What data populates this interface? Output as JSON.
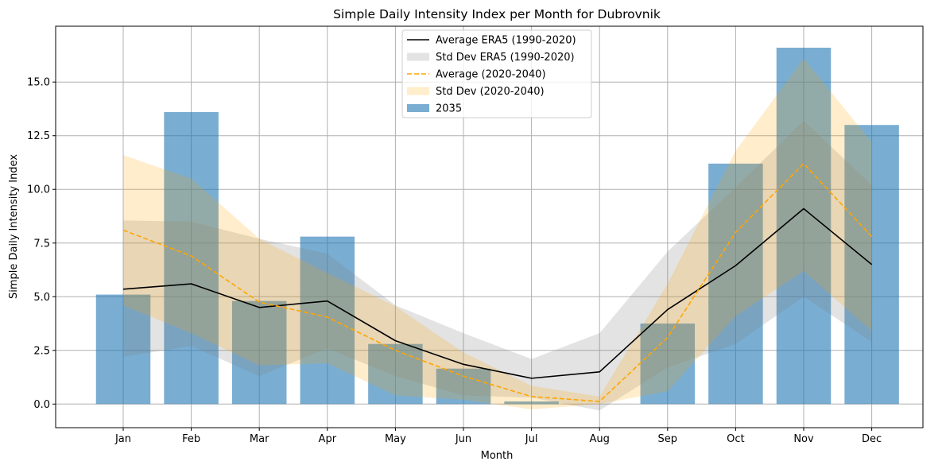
{
  "chart_data": {
    "type": "bar",
    "title": "Simple Daily Intensity Index per Month for Dubrovnik",
    "xlabel": "Month",
    "ylabel": "Simple Daily Intensity Index",
    "categories": [
      "Jan",
      "Feb",
      "Mar",
      "Apr",
      "May",
      "Jun",
      "Jul",
      "Aug",
      "Sep",
      "Oct",
      "Nov",
      "Dec"
    ],
    "ylim": [
      -1.1,
      17.6
    ],
    "yticks": [
      0.0,
      2.5,
      5.0,
      7.5,
      10.0,
      12.5,
      15.0
    ],
    "ytick_labels": [
      "0.0",
      "2.5",
      "5.0",
      "7.5",
      "10.0",
      "12.5",
      "15.0"
    ],
    "grid": true,
    "legend_position": "top-center",
    "series": [
      {
        "name": "Average ERA5 (1990-2020)",
        "kind": "line",
        "color": "#000000",
        "values": [
          5.35,
          5.6,
          4.5,
          4.8,
          2.95,
          1.85,
          1.2,
          1.5,
          4.4,
          6.45,
          9.1,
          6.5
        ]
      },
      {
        "name": "Std Dev ERA5 (1990-2020)",
        "kind": "band",
        "color": "#808080",
        "lower": [
          2.2,
          2.7,
          1.3,
          2.6,
          1.3,
          0.4,
          0.3,
          -0.3,
          1.7,
          2.8,
          5.0,
          2.9
        ],
        "upper": [
          8.55,
          8.5,
          7.7,
          7.0,
          4.6,
          3.3,
          2.1,
          3.3,
          7.1,
          10.1,
          13.2,
          10.2
        ]
      },
      {
        "name": "Average (2020-2040)",
        "kind": "line",
        "color": "#ffa500",
        "values": [
          8.1,
          6.9,
          4.75,
          4.05,
          2.5,
          1.3,
          0.35,
          0.12,
          3.1,
          8.0,
          11.2,
          7.8
        ]
      },
      {
        "name": "Std Dev (2020-2040)",
        "kind": "band",
        "color": "#ffa500",
        "lower": [
          4.6,
          3.3,
          1.8,
          1.9,
          0.4,
          0.2,
          -0.25,
          0.0,
          0.6,
          4.1,
          6.2,
          3.4
        ],
        "upper": [
          11.6,
          10.5,
          7.7,
          6.1,
          4.55,
          2.4,
          0.85,
          0.35,
          5.6,
          11.8,
          16.1,
          12.2
        ]
      },
      {
        "name": "2035",
        "kind": "bar",
        "color": "#1f77b4",
        "values": [
          5.1,
          13.6,
          4.8,
          7.8,
          2.8,
          1.65,
          0.12,
          0.0,
          3.75,
          11.2,
          16.6,
          13.0
        ]
      }
    ]
  }
}
